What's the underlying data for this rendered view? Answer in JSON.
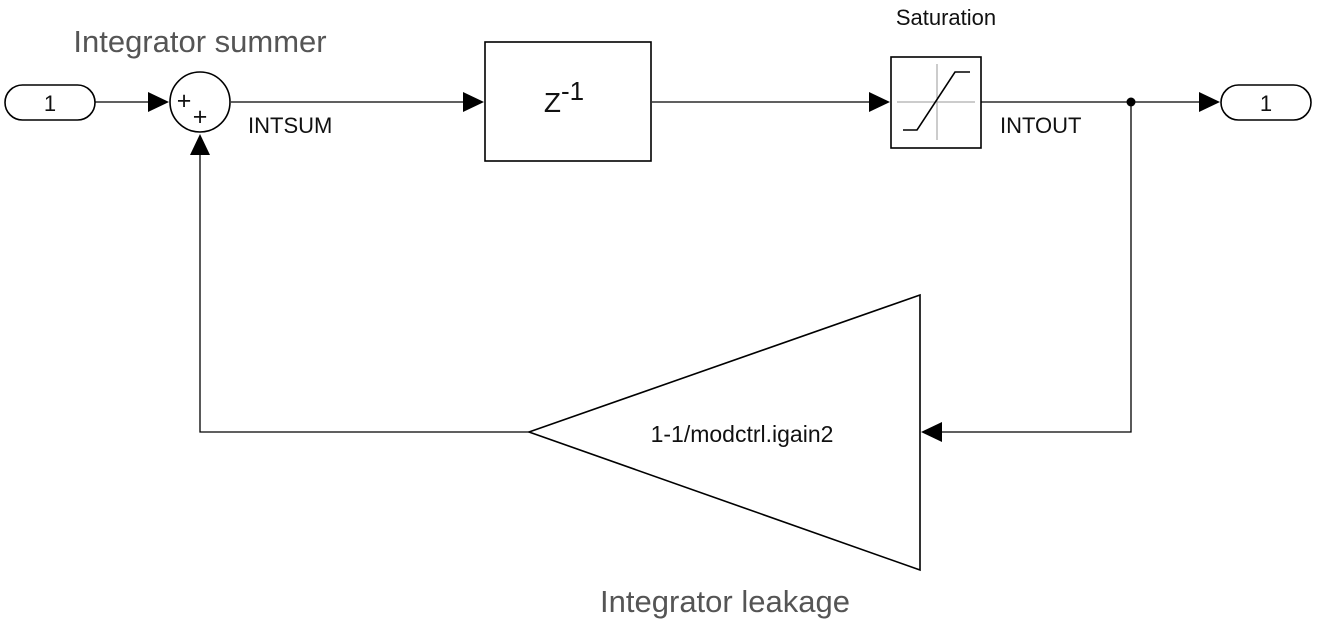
{
  "inport": {
    "label": "1"
  },
  "outport": {
    "label": "1"
  },
  "sum_block": {
    "name": "Integrator summer",
    "sign_left": "+",
    "sign_bottom": "+"
  },
  "delay_block": {
    "base": "Z",
    "exponent": "-1"
  },
  "saturation_block": {
    "name": "Saturation"
  },
  "gain_block": {
    "name": "Integrator leakage",
    "expression": "1-1/modctrl.igain2"
  },
  "signals": {
    "intsum": "INTSUM",
    "intout": "INTOUT"
  }
}
